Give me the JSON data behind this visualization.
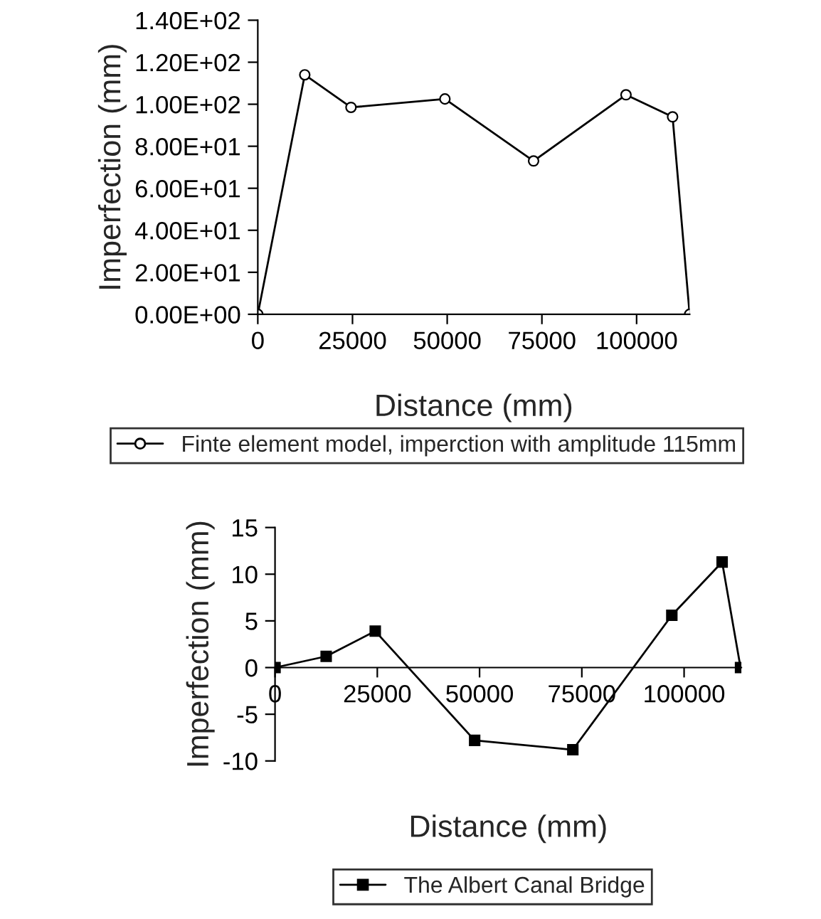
{
  "chart_data": [
    {
      "type": "line",
      "xlabel": "Distance (mm)",
      "ylabel": "Imperfection (mm)",
      "x": [
        0,
        12400,
        24600,
        49400,
        72800,
        97200,
        109500,
        114000
      ],
      "series": [
        {
          "name": "Finte element model, imperction with amplitude 115mm",
          "color": "#000000",
          "values": [
            0,
            114,
            98.5,
            102.5,
            73,
            104.5,
            94,
            0
          ]
        }
      ],
      "xlim": [
        0,
        114000
      ],
      "xticks": [
        0,
        25000,
        50000,
        75000,
        100000
      ],
      "ylim": [
        0,
        140
      ],
      "yticks": [
        {
          "value": 0,
          "label": "0.00E+00"
        },
        {
          "value": 20,
          "label": "2.00E+01"
        },
        {
          "value": 40,
          "label": "4.00E+01"
        },
        {
          "value": 60,
          "label": "6.00E+01"
        },
        {
          "value": 80,
          "label": "8.00E+01"
        },
        {
          "value": 100,
          "label": "1.00E+02"
        },
        {
          "value": 120,
          "label": "1.20E+02"
        },
        {
          "value": 140,
          "label": "1.40E+02"
        }
      ],
      "marker": "circle",
      "grid": false,
      "legend": "bottom"
    },
    {
      "type": "line",
      "xlabel": "Distance (mm)",
      "ylabel": "Imperfection (mm)",
      "x": [
        0,
        12500,
        24500,
        48800,
        72800,
        97000,
        109300,
        113800
      ],
      "series": [
        {
          "name": "The Albert Canal Bridge",
          "color": "#000000",
          "values": [
            0,
            1.2,
            3.9,
            -7.8,
            -8.8,
            5.6,
            11.3,
            0
          ]
        }
      ],
      "xlim": [
        0,
        114000
      ],
      "xticks": [
        0,
        25000,
        50000,
        75000,
        100000
      ],
      "ylim": [
        -10,
        15
      ],
      "yticks": [
        -10,
        -5,
        0,
        5,
        10,
        15
      ],
      "marker": "square",
      "grid": false,
      "legend": "bottom"
    }
  ]
}
